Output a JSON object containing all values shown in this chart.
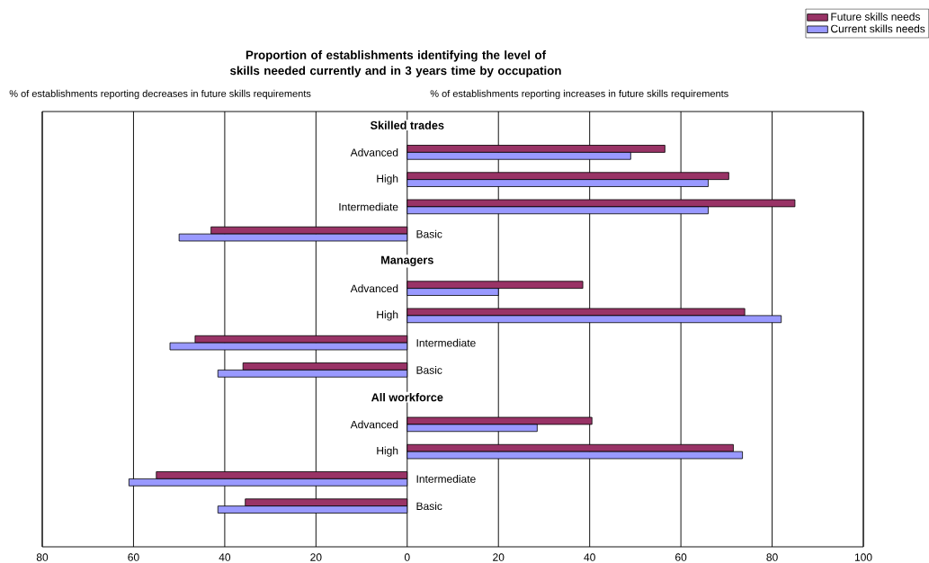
{
  "chart_data": {
    "type": "bar",
    "orientation": "horizontal",
    "title": "Proportion of establishments identifying the level of skills needed currently and  in 3 years time by occupation",
    "annotations": [
      "% of establishments reporting decreases in future skills requirements",
      "% of establishments reporting increases  in future skills requirements"
    ],
    "categories": [
      "Skilled trades",
      "Advanced",
      "High",
      "Intermediate",
      "Basic",
      "Managers",
      "Advanced",
      "High",
      "Intermediate",
      "Basic",
      "All workforce",
      "Advanced",
      "High",
      "Intermediate",
      "Basic"
    ],
    "series": [
      {
        "name": "Future skills needs",
        "color": "#993366",
        "values": [
          null,
          56.5,
          70.5,
          85,
          -43,
          null,
          38.5,
          74,
          -46.5,
          -36,
          null,
          40.5,
          71.5,
          -55,
          -35.5
        ]
      },
      {
        "name": "Current skills needs",
        "color": "#9999ff",
        "values": [
          null,
          49,
          66,
          66,
          -50,
          null,
          20,
          82,
          -52,
          -41.5,
          null,
          28.5,
          73.5,
          -61,
          -41.5
        ]
      }
    ],
    "xlim": [
      -80,
      100
    ],
    "xticks": [
      {
        "value": -80,
        "label": "80"
      },
      {
        "value": -60,
        "label": "60"
      },
      {
        "value": -40,
        "label": "40"
      },
      {
        "value": -20,
        "label": "20"
      },
      0,
      20,
      40,
      60,
      80,
      100
    ],
    "grid": "x",
    "legend": "top right"
  }
}
